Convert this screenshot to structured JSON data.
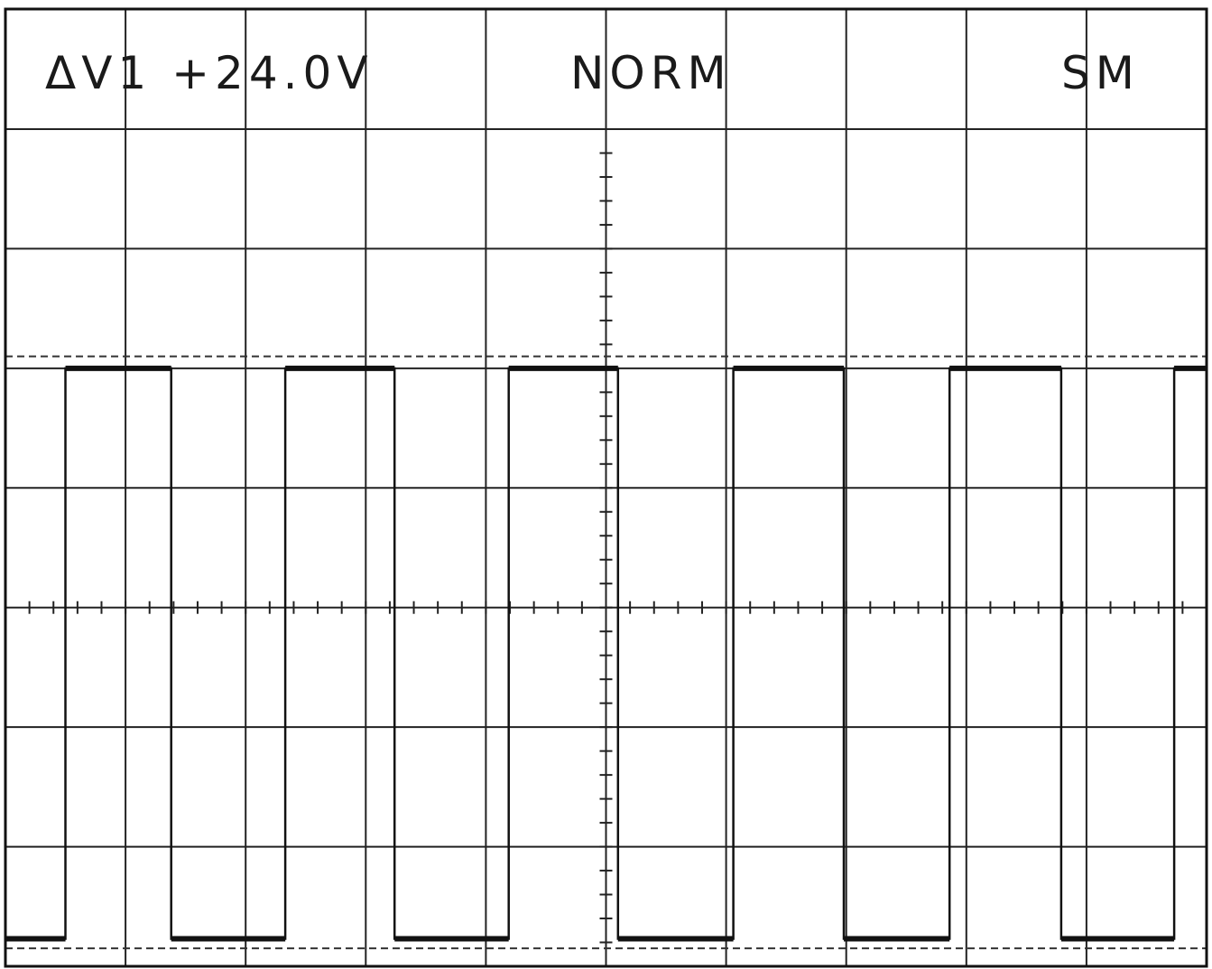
{
  "header": {
    "delta_v": "ΔV1 +24.0V",
    "trigger_mode": "NORM",
    "mode": "SM"
  },
  "chart_data": {
    "type": "line",
    "title": "",
    "xlabel": "",
    "ylabel": "",
    "grid": true,
    "xlim": [
      0,
      10
    ],
    "ylim": [
      -3,
      4
    ],
    "cursor_levels": [
      2.1,
      -2.85
    ],
    "series": [
      {
        "x": [
          0,
          0.5,
          0.5,
          1.38,
          1.38,
          2.33,
          2.33,
          3.24,
          3.24,
          4.19,
          4.19,
          5.1,
          5.1,
          6.06,
          6.06,
          6.98,
          6.98,
          7.86,
          7.86,
          8.79,
          8.79,
          9.73,
          9.73,
          10
        ],
        "y": [
          -2.77,
          -2.77,
          2.0,
          2.0,
          -2.77,
          -2.77,
          2.0,
          2.0,
          -2.77,
          -2.77,
          2.0,
          2.0,
          -2.77,
          -2.77,
          2.0,
          2.0,
          -2.77,
          -2.77,
          2.0,
          2.0,
          -2.77,
          -2.77,
          2.0,
          2.0
        ]
      }
    ]
  }
}
